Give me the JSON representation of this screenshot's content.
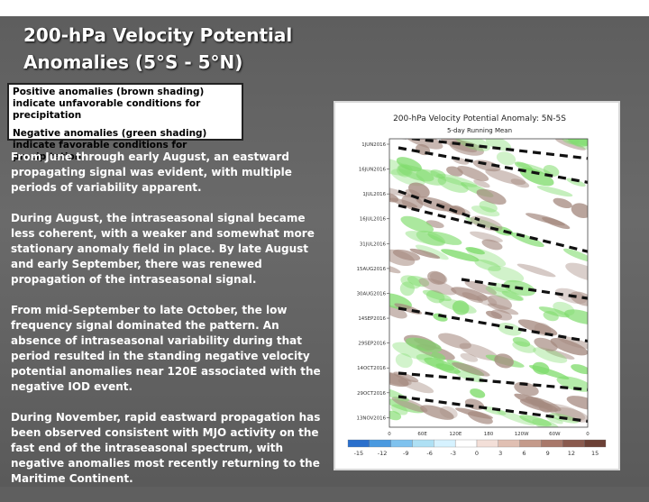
{
  "slide": {
    "title_line1": "200-hPa Velocity Potential",
    "title_line2": "Anomalies (5°S - 5°N)",
    "legend": {
      "positive": "Positive anomalies (brown shading) indicate unfavorable conditions for precipitation",
      "negative": "Negative anomalies (green shading) indicate favorable conditions for precipitation"
    },
    "paragraphs": [
      "From June through early August, an eastward propagating signal was evident, with multiple periods of variability apparent.",
      "During August, the intraseasonal signal became less coherent, with a weaker and somewhat more stationary anomaly field in place. By late August and early September, there was renewed propagation of the intraseasonal signal.",
      "From mid-September to late October, the low frequency signal dominated the pattern. An absence of intraseasonal variability during that period resulted in the standing negative velocity potential anomalies near 120E associated with the negative IOD event.",
      "During November, rapid eastward propagation has been observed consistent with MJO activity on the fast end of the intraseasonal spectrum, with negative anomalies most recently returning to the Maritime Continent."
    ]
  },
  "figure": {
    "title": "200-hPa Velocity Potential Anomaly: 5N-5S",
    "subtitle": "5-day Running Mean",
    "dates": [
      "1JUN2016",
      "16JUN2016",
      "1JUL2016",
      "16JUL2016",
      "31JUL2016",
      "15AUG2016",
      "30AUG2016",
      "14SEP2016",
      "29SEP2016",
      "14OCT2016",
      "29OCT2016",
      "13NOV2016"
    ],
    "lon_labels": [
      "0",
      "60E",
      "120E",
      "180",
      "120W",
      "60W",
      "0"
    ],
    "colorbar_labels": [
      "-15",
      "-12",
      "-9",
      "-6",
      "-3",
      "0",
      "3",
      "6",
      "9",
      "12",
      "15"
    ],
    "colors": {
      "positive": "#a58a80",
      "negative": "#7fdc6c",
      "dash_line": "#111111"
    }
  }
}
